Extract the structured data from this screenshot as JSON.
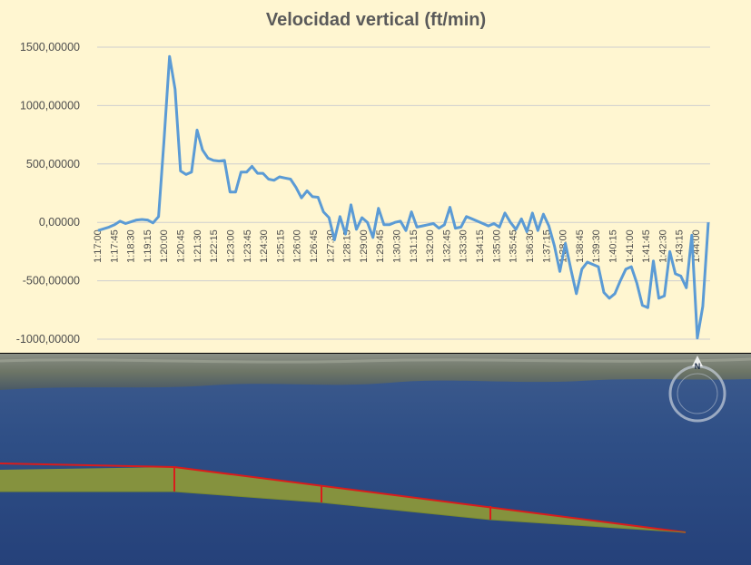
{
  "chart_data": {
    "type": "line",
    "title": "Velocidad vertical (ft/min)",
    "y_tick_labels": [
      "1500,00000",
      "1000,00000",
      "500,00000",
      "0,00000",
      "-500,00000",
      "-1000,00000"
    ],
    "y_tick_values": [
      1500,
      1000,
      500,
      0,
      -500,
      -1000
    ],
    "ylim": [
      -1050,
      1600
    ],
    "x_tick_labels": [
      "1:17:00",
      "1:17:45",
      "1:18:30",
      "1:19:15",
      "1:20:00",
      "1:20:45",
      "1:21:30",
      "1:22:15",
      "1:23:00",
      "1:23:45",
      "1:24:30",
      "1:25:15",
      "1:26:00",
      "1:26:45",
      "1:27:30",
      "1:28:15",
      "1:29:00",
      "1:29:45",
      "1:30:30",
      "1:31:15",
      "1:32:00",
      "1:32:45",
      "1:33:30",
      "1:34:15",
      "1:35:00",
      "1:35:45",
      "1:36:30",
      "1:37:15",
      "1:38:00",
      "1:38:45",
      "1:39:30",
      "1:40:15",
      "1:41:00",
      "1:41:45",
      "1:42:30",
      "1:43:15",
      "1:44:00"
    ],
    "grid": true,
    "series": [
      {
        "color": "#5b9bd5",
        "values": [
          -70,
          -55,
          -40,
          -20,
          10,
          -10,
          5,
          20,
          25,
          20,
          -5,
          50,
          700,
          1420,
          1140,
          440,
          410,
          430,
          790,
          620,
          550,
          530,
          525,
          530,
          260,
          260,
          430,
          430,
          480,
          420,
          420,
          370,
          360,
          390,
          380,
          370,
          300,
          210,
          270,
          220,
          215,
          90,
          40,
          -150,
          50,
          -100,
          150,
          -60,
          40,
          0,
          -130,
          120,
          -20,
          -20,
          0,
          10,
          -70,
          90,
          -40,
          -30,
          -20,
          -10,
          -50,
          -20,
          130,
          -50,
          -40,
          50,
          30,
          10,
          -10,
          -30,
          -10,
          -40,
          80,
          0,
          -60,
          30,
          -80,
          80,
          -70,
          70,
          -30,
          -200,
          -420,
          -180,
          -400,
          -610,
          -400,
          -340,
          -360,
          -380,
          -600,
          -650,
          -610,
          -500,
          -400,
          -380,
          -520,
          -710,
          -730,
          -330,
          -650,
          -630,
          -250,
          -440,
          -460,
          -560,
          -110,
          -990,
          -720,
          0
        ]
      }
    ]
  },
  "map": {
    "water_color": "#2f4f86",
    "corridor_fill": "#8f9a36",
    "corridor_line": "#d91c1c",
    "compass_label": "N"
  }
}
